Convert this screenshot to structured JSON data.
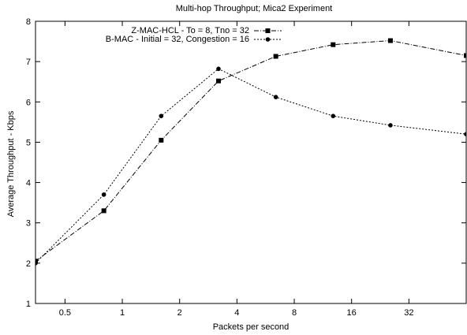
{
  "chart_data": {
    "type": "line",
    "title": "Multi-hop Throughput; Mica2 Experiment",
    "xlabel": "Packets per second",
    "ylabel": "Average Throughput - Kbps",
    "x_scale": "log2",
    "xlim": [
      0.35,
      64
    ],
    "ylim": [
      1,
      8
    ],
    "x_ticks": [
      0.5,
      1,
      2,
      4,
      8,
      16,
      32
    ],
    "x_tick_labels": [
      "0.5",
      "1",
      "2",
      "4",
      "8",
      "16",
      "32"
    ],
    "y_ticks": [
      1,
      2,
      3,
      4,
      5,
      6,
      7,
      8
    ],
    "y_tick_labels": [
      "1",
      "2",
      "3",
      "4",
      "5",
      "6",
      "7",
      "8"
    ],
    "grid": false,
    "legend_position": "top-center",
    "series": [
      {
        "name": "Z-MAC-HCL - To = 8, Tno = 32",
        "marker": "square",
        "dash": "dash-dot",
        "x": [
          0.35,
          0.8,
          1.6,
          3.2,
          6.4,
          12.8,
          25.6,
          64
        ],
        "y": [
          2.05,
          3.3,
          5.05,
          6.52,
          7.13,
          7.42,
          7.52,
          7.15
        ]
      },
      {
        "name": "B-MAC - Initial = 32, Congestion = 16",
        "marker": "circle",
        "dash": "dotted",
        "x": [
          0.35,
          0.8,
          1.6,
          3.2,
          6.4,
          12.8,
          25.6,
          64
        ],
        "y": [
          2.0,
          3.7,
          5.65,
          6.82,
          6.12,
          5.65,
          5.42,
          5.2
        ]
      }
    ]
  }
}
